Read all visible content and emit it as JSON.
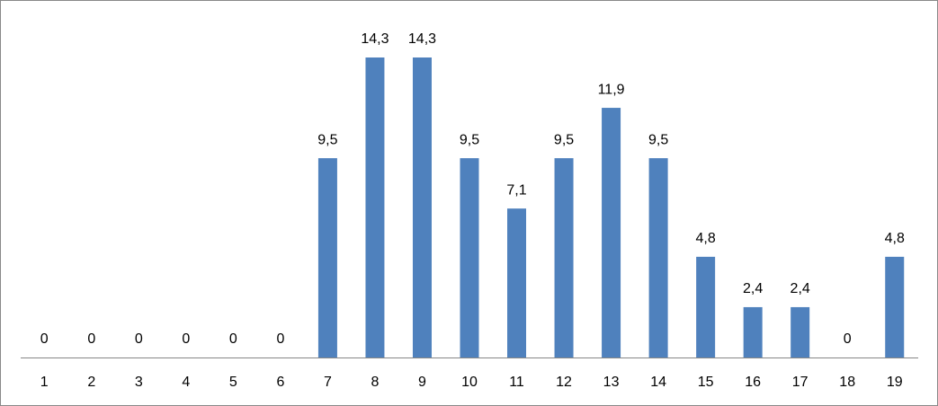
{
  "chart_data": {
    "type": "bar",
    "categories": [
      "1",
      "2",
      "3",
      "4",
      "5",
      "6",
      "7",
      "8",
      "9",
      "10",
      "11",
      "12",
      "13",
      "14",
      "15",
      "16",
      "17",
      "18",
      "19"
    ],
    "values": [
      0,
      0,
      0,
      0,
      0,
      0,
      9.5,
      14.3,
      14.3,
      9.5,
      7.1,
      9.5,
      11.9,
      9.5,
      4.8,
      2.4,
      2.4,
      0,
      4.8
    ],
    "value_labels": [
      "0",
      "0",
      "0",
      "0",
      "0",
      "0",
      "9,5",
      "14,3",
      "14,3",
      "9,5",
      "7,1",
      "9,5",
      "11,9",
      "9,5",
      "4,8",
      "2,4",
      "2,4",
      "0",
      "4,8"
    ],
    "color": "#4f81bd"
  }
}
